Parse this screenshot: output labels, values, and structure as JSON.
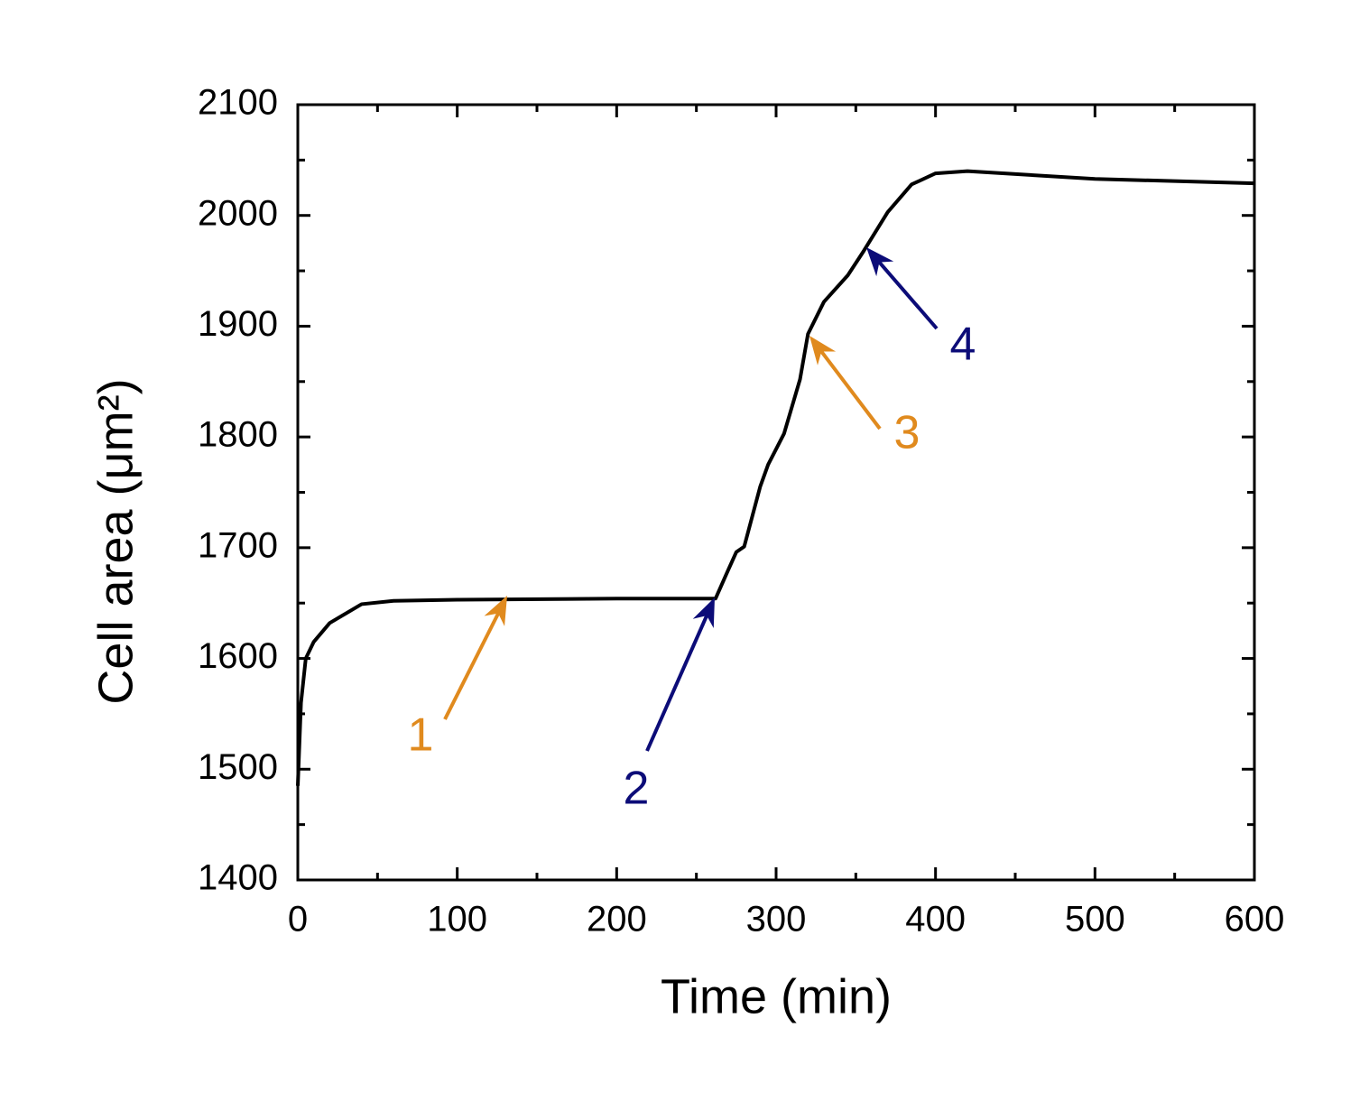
{
  "chart_data": {
    "type": "line",
    "xlabel": "Time (min)",
    "ylabel": "Cell area (μm²)",
    "x": [
      0,
      2,
      5,
      10,
      20,
      40,
      60,
      100,
      200,
      262,
      270,
      275,
      280,
      290,
      295,
      305,
      315,
      320,
      330,
      345,
      355,
      370,
      385,
      400,
      420,
      500,
      600
    ],
    "series": [
      {
        "name": "Cell area",
        "color": "#000000",
        "values": [
          1485,
          1560,
          1600,
          1615,
          1632,
          1649,
          1652,
          1653,
          1654,
          1654,
          1680,
          1696,
          1701,
          1755,
          1775,
          1803,
          1852,
          1893,
          1922,
          1946,
          1968,
          2003,
          2028,
          2038,
          2040,
          2033,
          2029
        ]
      }
    ],
    "xlim": [
      0,
      600
    ],
    "xticks": [
      0,
      100,
      200,
      300,
      400,
      500,
      600
    ],
    "xminorticks": [
      50,
      150,
      250,
      350,
      450,
      550
    ],
    "ylim": [
      1400,
      2100
    ],
    "yticks": [
      1400,
      1500,
      1600,
      1700,
      1800,
      1900,
      2000,
      2100
    ],
    "yminorticks": [
      1450,
      1550,
      1650,
      1750,
      1850,
      1950,
      2050
    ],
    "grid": false,
    "annotations": [
      {
        "text": "1",
        "color": "#e08a1e"
      },
      {
        "text": "2",
        "color": "#0c0c78"
      },
      {
        "text": "3",
        "color": "#e08a1e"
      },
      {
        "text": "4",
        "color": "#0c0c78"
      }
    ]
  }
}
